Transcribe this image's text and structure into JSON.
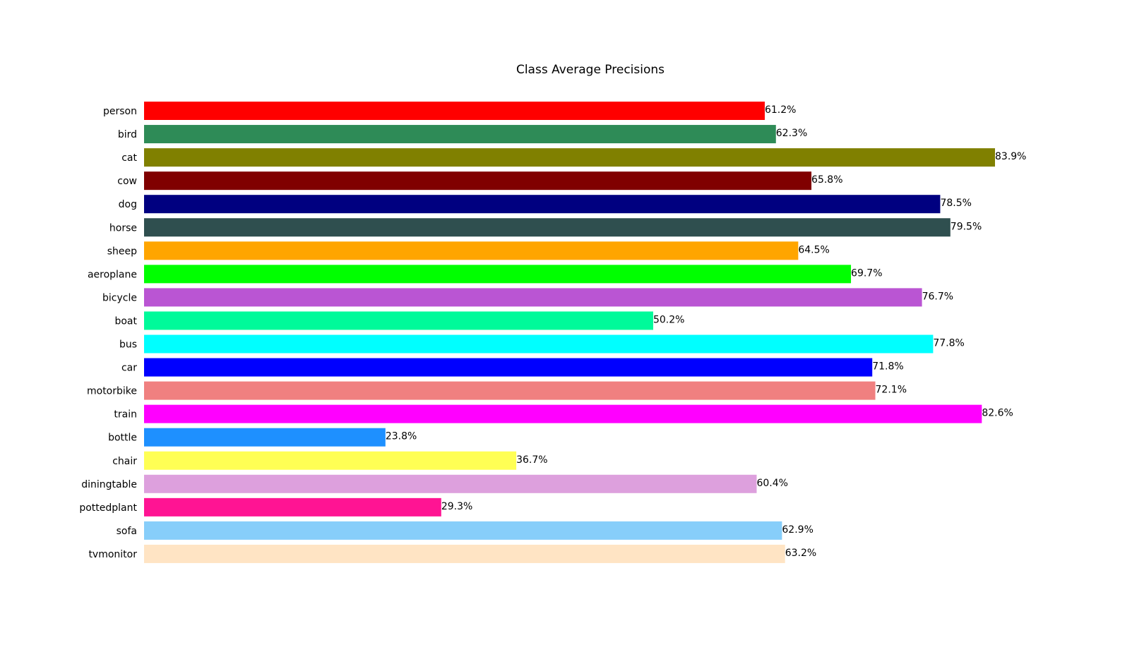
{
  "chart_data": {
    "type": "bar",
    "orientation": "horizontal",
    "title": "Class Average Precisions",
    "xlabel": "",
    "ylabel": "",
    "xlim": [
      0,
      100
    ],
    "grid": false,
    "axes_visible": false,
    "value_suffix": "%",
    "categories": [
      "person",
      "bird",
      "cat",
      "cow",
      "dog",
      "horse",
      "sheep",
      "aeroplane",
      "bicycle",
      "boat",
      "bus",
      "car",
      "motorbike",
      "train",
      "bottle",
      "chair",
      "diningtable",
      "pottedplant",
      "sofa",
      "tvmonitor"
    ],
    "values": [
      61.2,
      62.3,
      83.9,
      65.8,
      78.5,
      79.5,
      64.5,
      69.7,
      76.7,
      50.2,
      77.8,
      71.8,
      72.1,
      82.6,
      23.8,
      36.7,
      60.4,
      29.3,
      62.9,
      63.2
    ],
    "value_labels": [
      "61.2%",
      "62.3%",
      "83.9%",
      "65.8%",
      "78.5%",
      "79.5%",
      "64.5%",
      "69.7%",
      "76.7%",
      "50.2%",
      "77.8%",
      "71.8%",
      "72.1%",
      "82.6%",
      "23.8%",
      "36.7%",
      "60.4%",
      "29.3%",
      "62.9%",
      "63.2%"
    ],
    "colors": [
      "#ff0000",
      "#2e8b57",
      "#808000",
      "#800000",
      "#000080",
      "#2f4f4f",
      "#ffa500",
      "#00ff00",
      "#ba55d3",
      "#00fa9a",
      "#00ffff",
      "#0000ff",
      "#f08080",
      "#ff00ff",
      "#1e90ff",
      "#ffff54",
      "#dda0dd",
      "#ff1493",
      "#87cefa",
      "#ffe4c4"
    ]
  }
}
